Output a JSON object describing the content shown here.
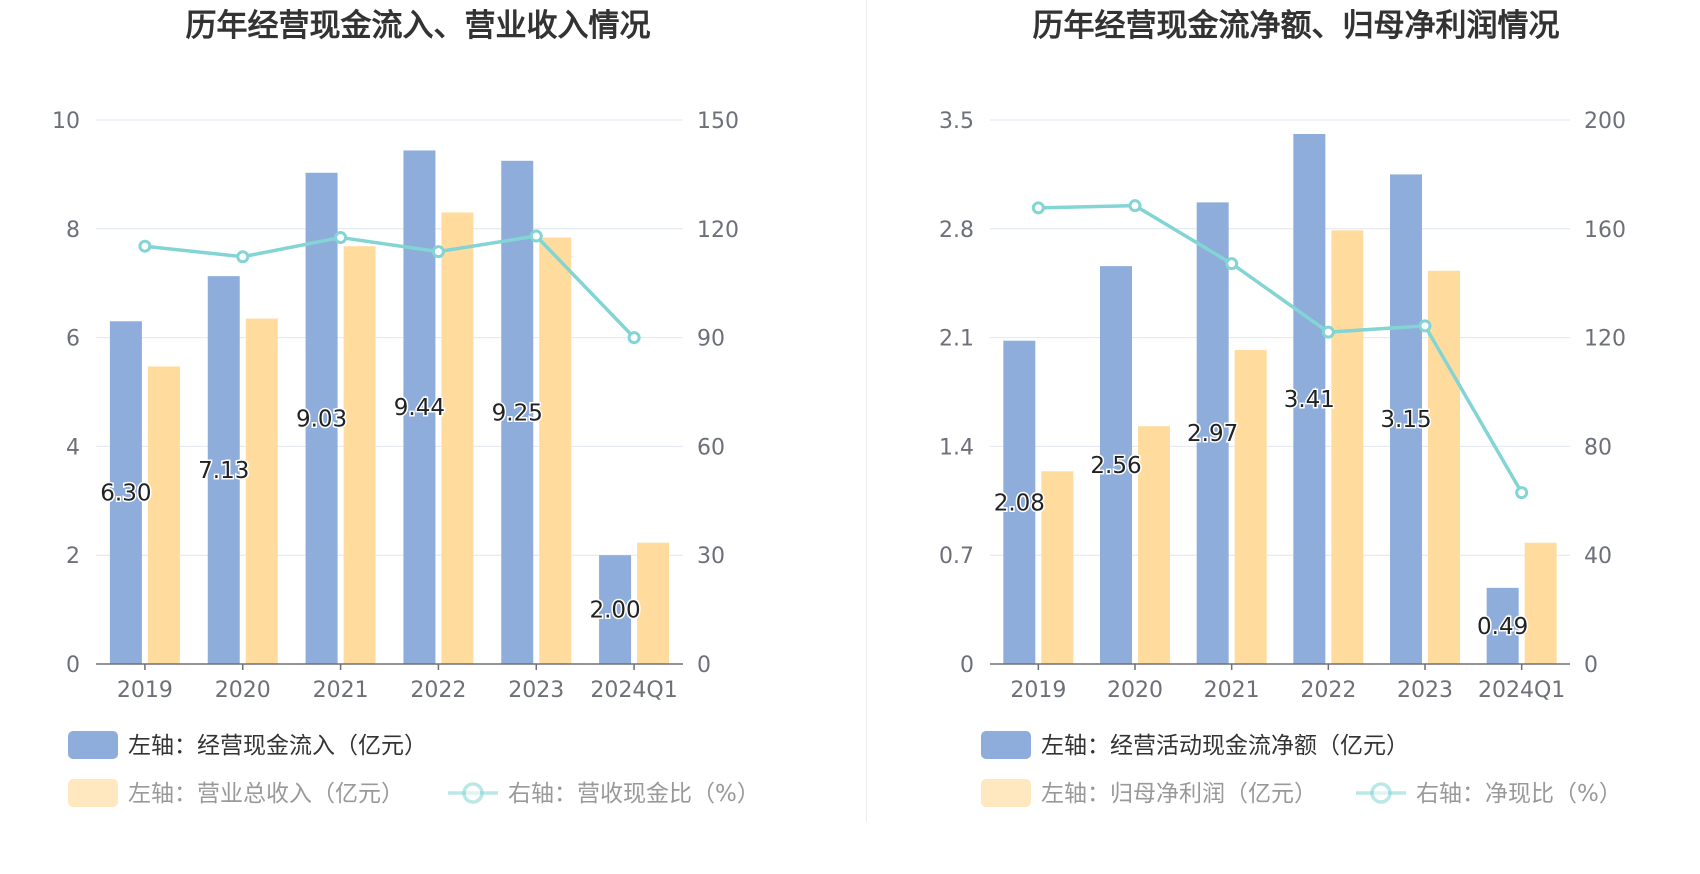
{
  "chart_data": [
    {
      "type": "bar",
      "title": "历年经营现金流入、营业收入情况",
      "categories": [
        "2019",
        "2020",
        "2021",
        "2022",
        "2023",
        "2024Q1"
      ],
      "left_axis": {
        "ticks": [
          "0",
          "2",
          "4",
          "6",
          "8",
          "10"
        ],
        "ylim": [
          0,
          10
        ]
      },
      "right_axis": {
        "ticks": [
          "0",
          "30",
          "60",
          "90",
          "120",
          "150"
        ],
        "ylim": [
          0,
          150
        ]
      },
      "grid": true,
      "legend_position": "bottom",
      "series": [
        {
          "name": "左轴：经营现金流入（亿元）",
          "type": "bar",
          "axis": "left",
          "color": "#8eaddb",
          "values": [
            6.3,
            7.13,
            9.03,
            9.44,
            9.25,
            2.0
          ],
          "labels": [
            "6.30",
            "7.13",
            "9.03",
            "9.44",
            "9.25",
            "2.00"
          ]
        },
        {
          "name": "左轴：营业总收入（亿元）",
          "type": "bar",
          "axis": "left",
          "color": "#ffdc9e",
          "values": [
            5.47,
            6.35,
            7.68,
            8.3,
            7.84,
            2.23
          ]
        },
        {
          "name": "右轴：营收现金比（%）",
          "type": "line",
          "axis": "right",
          "color": "#83d4d4",
          "values": [
            115.2,
            112.3,
            117.6,
            113.7,
            118.0,
            90.0
          ]
        }
      ]
    },
    {
      "type": "bar",
      "title": "历年经营现金流净额、归母净利润情况",
      "categories": [
        "2019",
        "2020",
        "2021",
        "2022",
        "2023",
        "2024Q1"
      ],
      "left_axis": {
        "ticks": [
          "0",
          "0.7",
          "1.4",
          "2.1",
          "2.8",
          "3.5"
        ],
        "ylim": [
          0,
          3.5
        ]
      },
      "right_axis": {
        "ticks": [
          "0",
          "40",
          "80",
          "120",
          "160",
          "200"
        ],
        "ylim": [
          0,
          200
        ]
      },
      "grid": true,
      "legend_position": "bottom",
      "series": [
        {
          "name": "左轴：经营活动现金流净额（亿元）",
          "type": "bar",
          "axis": "left",
          "color": "#8eaddb",
          "values": [
            2.08,
            2.56,
            2.97,
            3.41,
            3.15,
            0.49
          ],
          "labels": [
            "2.08",
            "2.56",
            "2.97",
            "3.41",
            "3.15",
            "0.49"
          ]
        },
        {
          "name": "左轴：归母净利润（亿元）",
          "type": "bar",
          "axis": "left",
          "color": "#ffdc9e",
          "values": [
            1.24,
            1.53,
            2.02,
            2.79,
            2.53,
            0.78
          ]
        },
        {
          "name": "右轴：净现比（%）",
          "type": "line",
          "axis": "right",
          "color": "#83d4d4",
          "values": [
            167.7,
            168.5,
            147.2,
            122.0,
            124.3,
            63.0
          ]
        }
      ]
    }
  ]
}
